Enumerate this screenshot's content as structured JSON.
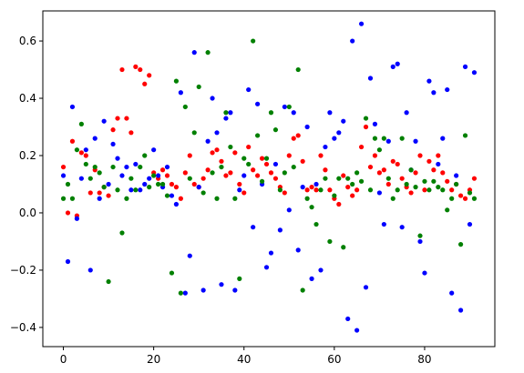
{
  "chart_data": {
    "type": "scatter",
    "x": [
      0,
      1,
      2,
      3,
      4,
      5,
      6,
      7,
      8,
      9,
      10,
      11,
      12,
      13,
      14,
      15,
      16,
      17,
      18,
      19,
      20,
      21,
      22,
      23,
      24,
      25,
      26,
      27,
      28,
      29,
      30,
      31,
      32,
      33,
      34,
      35,
      36,
      37,
      38,
      39,
      40,
      41,
      42,
      43,
      44,
      45,
      46,
      47,
      48,
      49,
      50,
      51,
      52,
      53,
      54,
      55,
      56,
      57,
      58,
      59,
      60,
      61,
      62,
      63,
      64,
      65,
      66,
      67,
      68,
      69,
      70,
      71,
      72,
      73,
      74,
      75,
      76,
      77,
      78,
      79,
      80,
      81,
      82,
      83,
      84,
      85,
      86,
      87,
      88,
      89,
      90,
      91
    ],
    "series": [
      {
        "color": "#ff0000",
        "values": [
          0.16,
          0.0,
          0.25,
          -0.01,
          0.21,
          0.2,
          0.07,
          0.15,
          0.07,
          0.09,
          0.06,
          0.29,
          0.33,
          0.5,
          0.33,
          0.28,
          0.51,
          0.5,
          0.45,
          0.48,
          0.14,
          0.12,
          0.15,
          0.13,
          0.1,
          0.09,
          0.05,
          0.14,
          0.2,
          0.1,
          0.09,
          0.12,
          0.15,
          0.21,
          0.22,
          0.18,
          0.13,
          0.14,
          0.21,
          0.1,
          0.07,
          0.23,
          0.15,
          0.13,
          0.19,
          0.17,
          0.14,
          0.12,
          0.09,
          0.07,
          0.2,
          0.26,
          0.27,
          0.18,
          0.08,
          0.09,
          0.08,
          0.2,
          0.15,
          0.08,
          0.05,
          0.03,
          0.13,
          0.09,
          0.06,
          0.08,
          0.23,
          0.3,
          0.16,
          0.2,
          0.14,
          0.15,
          0.1,
          0.18,
          0.17,
          0.12,
          0.09,
          0.07,
          0.14,
          0.2,
          0.08,
          0.18,
          0.15,
          0.2,
          0.14,
          0.11,
          0.08,
          0.1,
          0.06,
          0.05,
          0.08,
          0.12
        ]
      },
      {
        "color": "#0000ff",
        "values": [
          0.13,
          -0.17,
          0.37,
          -0.02,
          0.12,
          0.22,
          -0.2,
          0.26,
          0.05,
          0.32,
          0.1,
          0.24,
          0.19,
          0.13,
          0.16,
          0.08,
          0.17,
          0.08,
          0.1,
          0.12,
          0.22,
          0.13,
          0.09,
          0.16,
          0.06,
          0.03,
          0.42,
          -0.28,
          -0.15,
          0.56,
          0.09,
          -0.27,
          0.25,
          0.4,
          0.28,
          -0.25,
          0.33,
          0.35,
          -0.27,
          0.08,
          0.13,
          0.43,
          -0.05,
          0.38,
          0.1,
          -0.19,
          -0.14,
          0.17,
          -0.06,
          0.37,
          0.01,
          0.35,
          -0.13,
          0.09,
          0.3,
          -0.23,
          0.1,
          -0.2,
          0.23,
          0.35,
          0.26,
          0.28,
          0.32,
          -0.37,
          0.6,
          -0.41,
          0.66,
          -0.26,
          0.47,
          0.31,
          0.07,
          -0.04,
          0.25,
          0.51,
          0.52,
          -0.05,
          0.35,
          0.15,
          0.25,
          -0.1,
          -0.21,
          0.46,
          0.42,
          0.17,
          0.26,
          0.43,
          -0.28,
          0.13,
          -0.34,
          0.51,
          -0.04,
          0.49
        ]
      },
      {
        "color": "#008000",
        "values": [
          0.05,
          0.1,
          0.05,
          0.22,
          0.31,
          0.17,
          0.12,
          0.16,
          0.14,
          0.09,
          -0.24,
          0.16,
          0.08,
          -0.07,
          0.05,
          0.12,
          0.08,
          0.16,
          0.2,
          0.09,
          0.13,
          0.1,
          0.1,
          0.06,
          -0.21,
          0.46,
          -0.28,
          0.37,
          0.12,
          0.28,
          0.44,
          0.07,
          0.56,
          0.14,
          0.05,
          0.16,
          0.35,
          0.23,
          0.05,
          -0.23,
          0.19,
          0.17,
          0.6,
          0.27,
          0.11,
          0.19,
          0.35,
          0.29,
          0.08,
          0.14,
          0.37,
          0.16,
          0.5,
          -0.27,
          0.05,
          0.02,
          -0.04,
          0.08,
          0.12,
          -0.1,
          0.06,
          0.12,
          -0.12,
          0.12,
          0.1,
          0.14,
          0.11,
          0.33,
          0.08,
          0.26,
          0.22,
          0.26,
          0.12,
          0.05,
          0.08,
          0.26,
          0.1,
          0.15,
          0.09,
          -0.08,
          0.11,
          0.08,
          0.11,
          0.09,
          0.08,
          0.01,
          0.05,
          0.1,
          -0.11,
          0.27,
          0.07,
          0.05
        ]
      }
    ],
    "xlim": [
      -4.55,
      95.55
    ],
    "ylim": [
      -0.467,
      0.705
    ],
    "xticks": [
      0,
      20,
      40,
      60,
      80
    ],
    "yticks": [
      {
        "value": -0.4,
        "label": "−0.4"
      },
      {
        "value": -0.2,
        "label": "−0.2"
      },
      {
        "value": 0,
        "label": "0.0"
      },
      0.2,
      0.4,
      0.6
    ],
    "grid": false
  }
}
